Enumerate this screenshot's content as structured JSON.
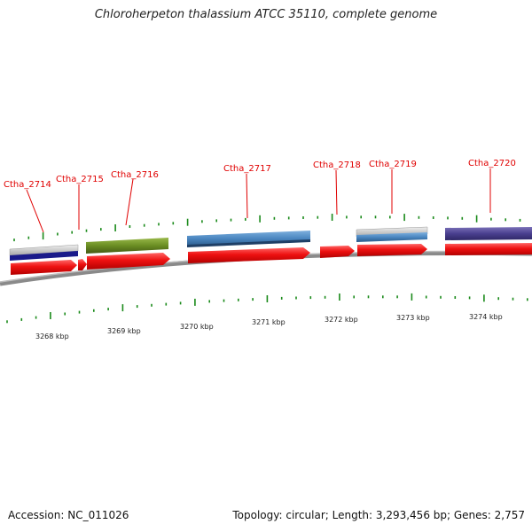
{
  "title": "Chloroherpeton thalassium ATCC 35110, complete genome",
  "footer": {
    "accession": "Accession: NC_011026",
    "stats": "Topology: circular; Length: 3,293,456 bp; Genes: 2,757"
  },
  "colors": {
    "gene_arrow": "#ee1111",
    "label": "#e00000",
    "tick": "#1a8a1a",
    "backbone": "#777777"
  },
  "genes": [
    {
      "name": "Ctha_2714",
      "feature_color": "#1a1a8a"
    },
    {
      "name": "Ctha_2715",
      "feature_color": null
    },
    {
      "name": "Ctha_2716",
      "feature_color": "#6b8e23"
    },
    {
      "name": "Ctha_2717",
      "feature_color": "#4a86c0"
    },
    {
      "name": "Ctha_2718",
      "feature_color": null
    },
    {
      "name": "Ctha_2719",
      "feature_color": "#4a86c0"
    },
    {
      "name": "Ctha_2720",
      "feature_color": "#4a3f8f"
    }
  ],
  "scale_labels": [
    "3268 kbp",
    "3269 kbp",
    "3270 kbp",
    "3271 kbp",
    "3272 kbp",
    "3273 kbp",
    "3274 kbp"
  ]
}
